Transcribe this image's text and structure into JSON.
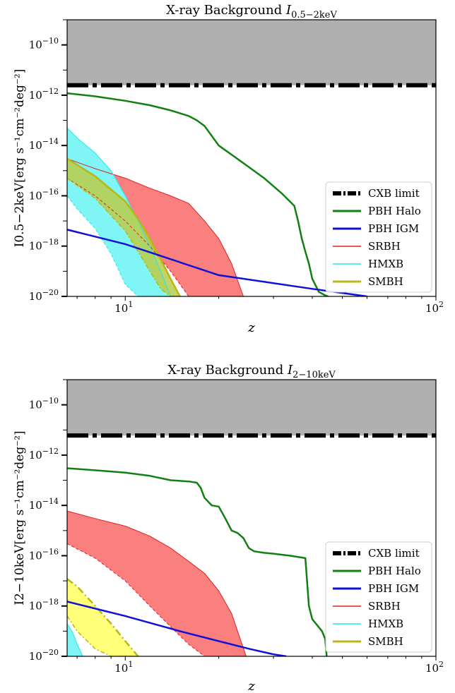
{
  "colors": {
    "cxb_limit": "#000000",
    "cxb_band": "#b0b0b0",
    "pbh_halo": "#118011",
    "pbh_igm": "#1010d8",
    "srbh": "#e02020",
    "srbh_band": "#fa7f7f",
    "hmxb": "#22e8e8",
    "hmxb_band": "#7ff5f5",
    "smbh": "#b8b814",
    "smbh_band_top": "#b8cc4a",
    "smbh_band_bottom": "#ffff7a"
  },
  "chart_data": [
    {
      "type": "line",
      "title_prefix": "X-ray Background ",
      "title_math": "I",
      "title_sub": "0.5−2keV",
      "xlabel": "z",
      "ylabel": "I0.5−2keV[erg s⁻¹cm⁻²deg⁻²]",
      "xscale": "log",
      "yscale": "log",
      "xlim": [
        6.5,
        100
      ],
      "ylim": [
        1e-20,
        1e-09
      ],
      "x_tick_labels": [
        {
          "value": 10,
          "mantissa": "10",
          "exp": "1"
        },
        {
          "value": 100,
          "mantissa": "10",
          "exp": "2"
        }
      ],
      "y_tick_labels": [
        {
          "value": 1e-10,
          "mantissa": "10",
          "exp": "−10"
        },
        {
          "value": 1e-12,
          "mantissa": "10",
          "exp": "−12"
        },
        {
          "value": 1e-14,
          "mantissa": "10",
          "exp": "−14"
        },
        {
          "value": 1e-16,
          "mantissa": "10",
          "exp": "−16"
        },
        {
          "value": 1e-18,
          "mantissa": "10",
          "exp": "−18"
        },
        {
          "value": 1e-20,
          "mantissa": "10",
          "exp": "−20"
        }
      ],
      "legend": {
        "placement": "lower-right",
        "entries": [
          "CXB limit",
          "PBH Halo",
          " PBH IGM",
          "SRBH",
          "HMXB",
          "SMBH"
        ]
      },
      "cxb_limit": 2.5e-12,
      "series": [
        {
          "name": "PBH Halo",
          "x": [
            6.5,
            8,
            10,
            12,
            14,
            16,
            17,
            18,
            20,
            24,
            28,
            32,
            35,
            36,
            37,
            38,
            39,
            40,
            42,
            44,
            45
          ],
          "y": [
            1.2e-12,
            9e-13,
            6e-13,
            4e-13,
            2.5e-13,
            1.5e-13,
            1e-13,
            6e-14,
            1e-14,
            2e-15,
            5e-16,
            1.2e-16,
            4e-17,
            1e-17,
            2e-18,
            6e-19,
            2e-19,
            5e-20,
            1.5e-20,
            1.1e-20,
            1e-20
          ]
        },
        {
          "name": " PBH IGM",
          "x": [
            6.5,
            10,
            20,
            40,
            60
          ],
          "y": [
            4.5e-18,
            1.2e-18,
            7e-20,
            2e-20,
            1e-20
          ]
        },
        {
          "name": "SRBH",
          "band_x": [
            6.5,
            8,
            10,
            12,
            14,
            16,
            18,
            20,
            22,
            24
          ],
          "upper": [
            3e-15,
            1.2e-15,
            5e-16,
            2e-16,
            1e-16,
            5e-17,
            1e-17,
            2e-18,
            2e-19,
            1e-20
          ],
          "lower": [
            5e-16,
            1e-16,
            1e-17,
            1e-18,
            1e-19,
            1e-20,
            1e-20,
            1e-20,
            1e-20,
            1e-20
          ]
        },
        {
          "name": "HMXB",
          "band_x": [
            6.5,
            7,
            8,
            9,
            10,
            11,
            12,
            13,
            14
          ],
          "upper": [
            5e-14,
            2e-14,
            5e-15,
            1e-15,
            1e-16,
            1e-17,
            1e-18,
            1e-19,
            1e-20
          ],
          "lower": [
            1e-16,
            3e-17,
            5e-18,
            5e-19,
            3e-20,
            1e-20,
            1e-20,
            1e-20,
            1e-20
          ]
        },
        {
          "name": "SMBH",
          "band_x": [
            6.5,
            8,
            10,
            11,
            12,
            13,
            14,
            15
          ],
          "upper": [
            3e-15,
            6e-16,
            6e-17,
            1.2e-17,
            2e-18,
            3e-19,
            5e-20,
            1e-20
          ],
          "lower": [
            5e-16,
            8e-17,
            4e-18,
            6e-19,
            1e-19,
            2e-20,
            1e-20,
            1e-20
          ]
        }
      ]
    },
    {
      "type": "line",
      "title_prefix": "X-ray Background ",
      "title_math": "I",
      "title_sub": "2−10keV",
      "xlabel": "z",
      "ylabel": "I2−10keV[erg s⁻¹cm⁻²deg⁻²]",
      "xscale": "log",
      "yscale": "log",
      "xlim": [
        6.5,
        100
      ],
      "ylim": [
        1e-20,
        1e-09
      ],
      "x_tick_labels": [
        {
          "value": 10,
          "mantissa": "10",
          "exp": "1"
        },
        {
          "value": 100,
          "mantissa": "10",
          "exp": "2"
        }
      ],
      "y_tick_labels": [
        {
          "value": 1e-10,
          "mantissa": "10",
          "exp": "−10"
        },
        {
          "value": 1e-12,
          "mantissa": "10",
          "exp": "−12"
        },
        {
          "value": 1e-14,
          "mantissa": "10",
          "exp": "−14"
        },
        {
          "value": 1e-16,
          "mantissa": "10",
          "exp": "−16"
        },
        {
          "value": 1e-18,
          "mantissa": "10",
          "exp": "−18"
        },
        {
          "value": 1e-20,
          "mantissa": "10",
          "exp": "−20"
        }
      ],
      "legend": {
        "placement": "lower-right",
        "entries": [
          "CXB limit",
          "PBH Halo",
          " PBH IGM",
          "SRBH",
          "HMXB",
          "SMBH"
        ]
      },
      "cxb_limit": 6e-12,
      "series": [
        {
          "name": "PBH Halo",
          "x": [
            6.5,
            8,
            10,
            12,
            14,
            16,
            17,
            17.5,
            18,
            19,
            20,
            21,
            22,
            23,
            24,
            25,
            26,
            28,
            30,
            34,
            38,
            39,
            40,
            43,
            44,
            44.5
          ],
          "y": [
            3e-13,
            2.5e-13,
            2e-13,
            1.5e-13,
            1e-13,
            9e-14,
            8e-14,
            5e-14,
            2e-14,
            1e-14,
            9e-15,
            3e-15,
            1e-15,
            8e-16,
            5e-16,
            2e-16,
            1.5e-16,
            1.3e-16,
            1.2e-16,
            1e-16,
            8e-17,
            1e-18,
            3e-19,
            1e-19,
            5e-20,
            1e-20
          ]
        },
        {
          "name": " PBH IGM",
          "x": [
            6.5,
            10,
            15,
            20,
            25,
            30,
            33
          ],
          "y": [
            1.5e-18,
            4e-19,
            1e-19,
            4e-20,
            2e-20,
            1.2e-20,
            1e-20
          ]
        },
        {
          "name": "SRBH",
          "band_x": [
            6.5,
            8,
            10,
            12,
            14,
            16,
            18,
            20,
            22,
            24.5
          ],
          "upper": [
            6e-15,
            3e-15,
            1.5e-15,
            6e-16,
            2e-16,
            6e-17,
            2e-17,
            4e-18,
            5e-19,
            1e-20
          ],
          "lower": [
            3e-16,
            8e-17,
            1e-17,
            1e-18,
            1.5e-19,
            3e-20,
            1e-20,
            1e-20,
            1e-20,
            1e-20
          ]
        },
        {
          "name": "HMXB",
          "band_x": [
            6.5,
            6.8,
            7,
            7.3
          ],
          "upper": [
            2e-19,
            8e-20,
            3e-20,
            1e-20
          ],
          "lower": [
            1e-20,
            1e-20,
            1e-20,
            1e-20
          ]
        },
        {
          "name": "SMBH",
          "band_x": [
            6.5,
            7,
            8,
            9,
            10,
            11
          ],
          "upper": [
            1.2e-17,
            6e-18,
            1e-18,
            2e-19,
            4e-20,
            1e-20
          ],
          "lower": [
            4e-19,
            1e-19,
            2e-20,
            1e-20,
            1e-20,
            1e-20
          ]
        }
      ]
    }
  ]
}
